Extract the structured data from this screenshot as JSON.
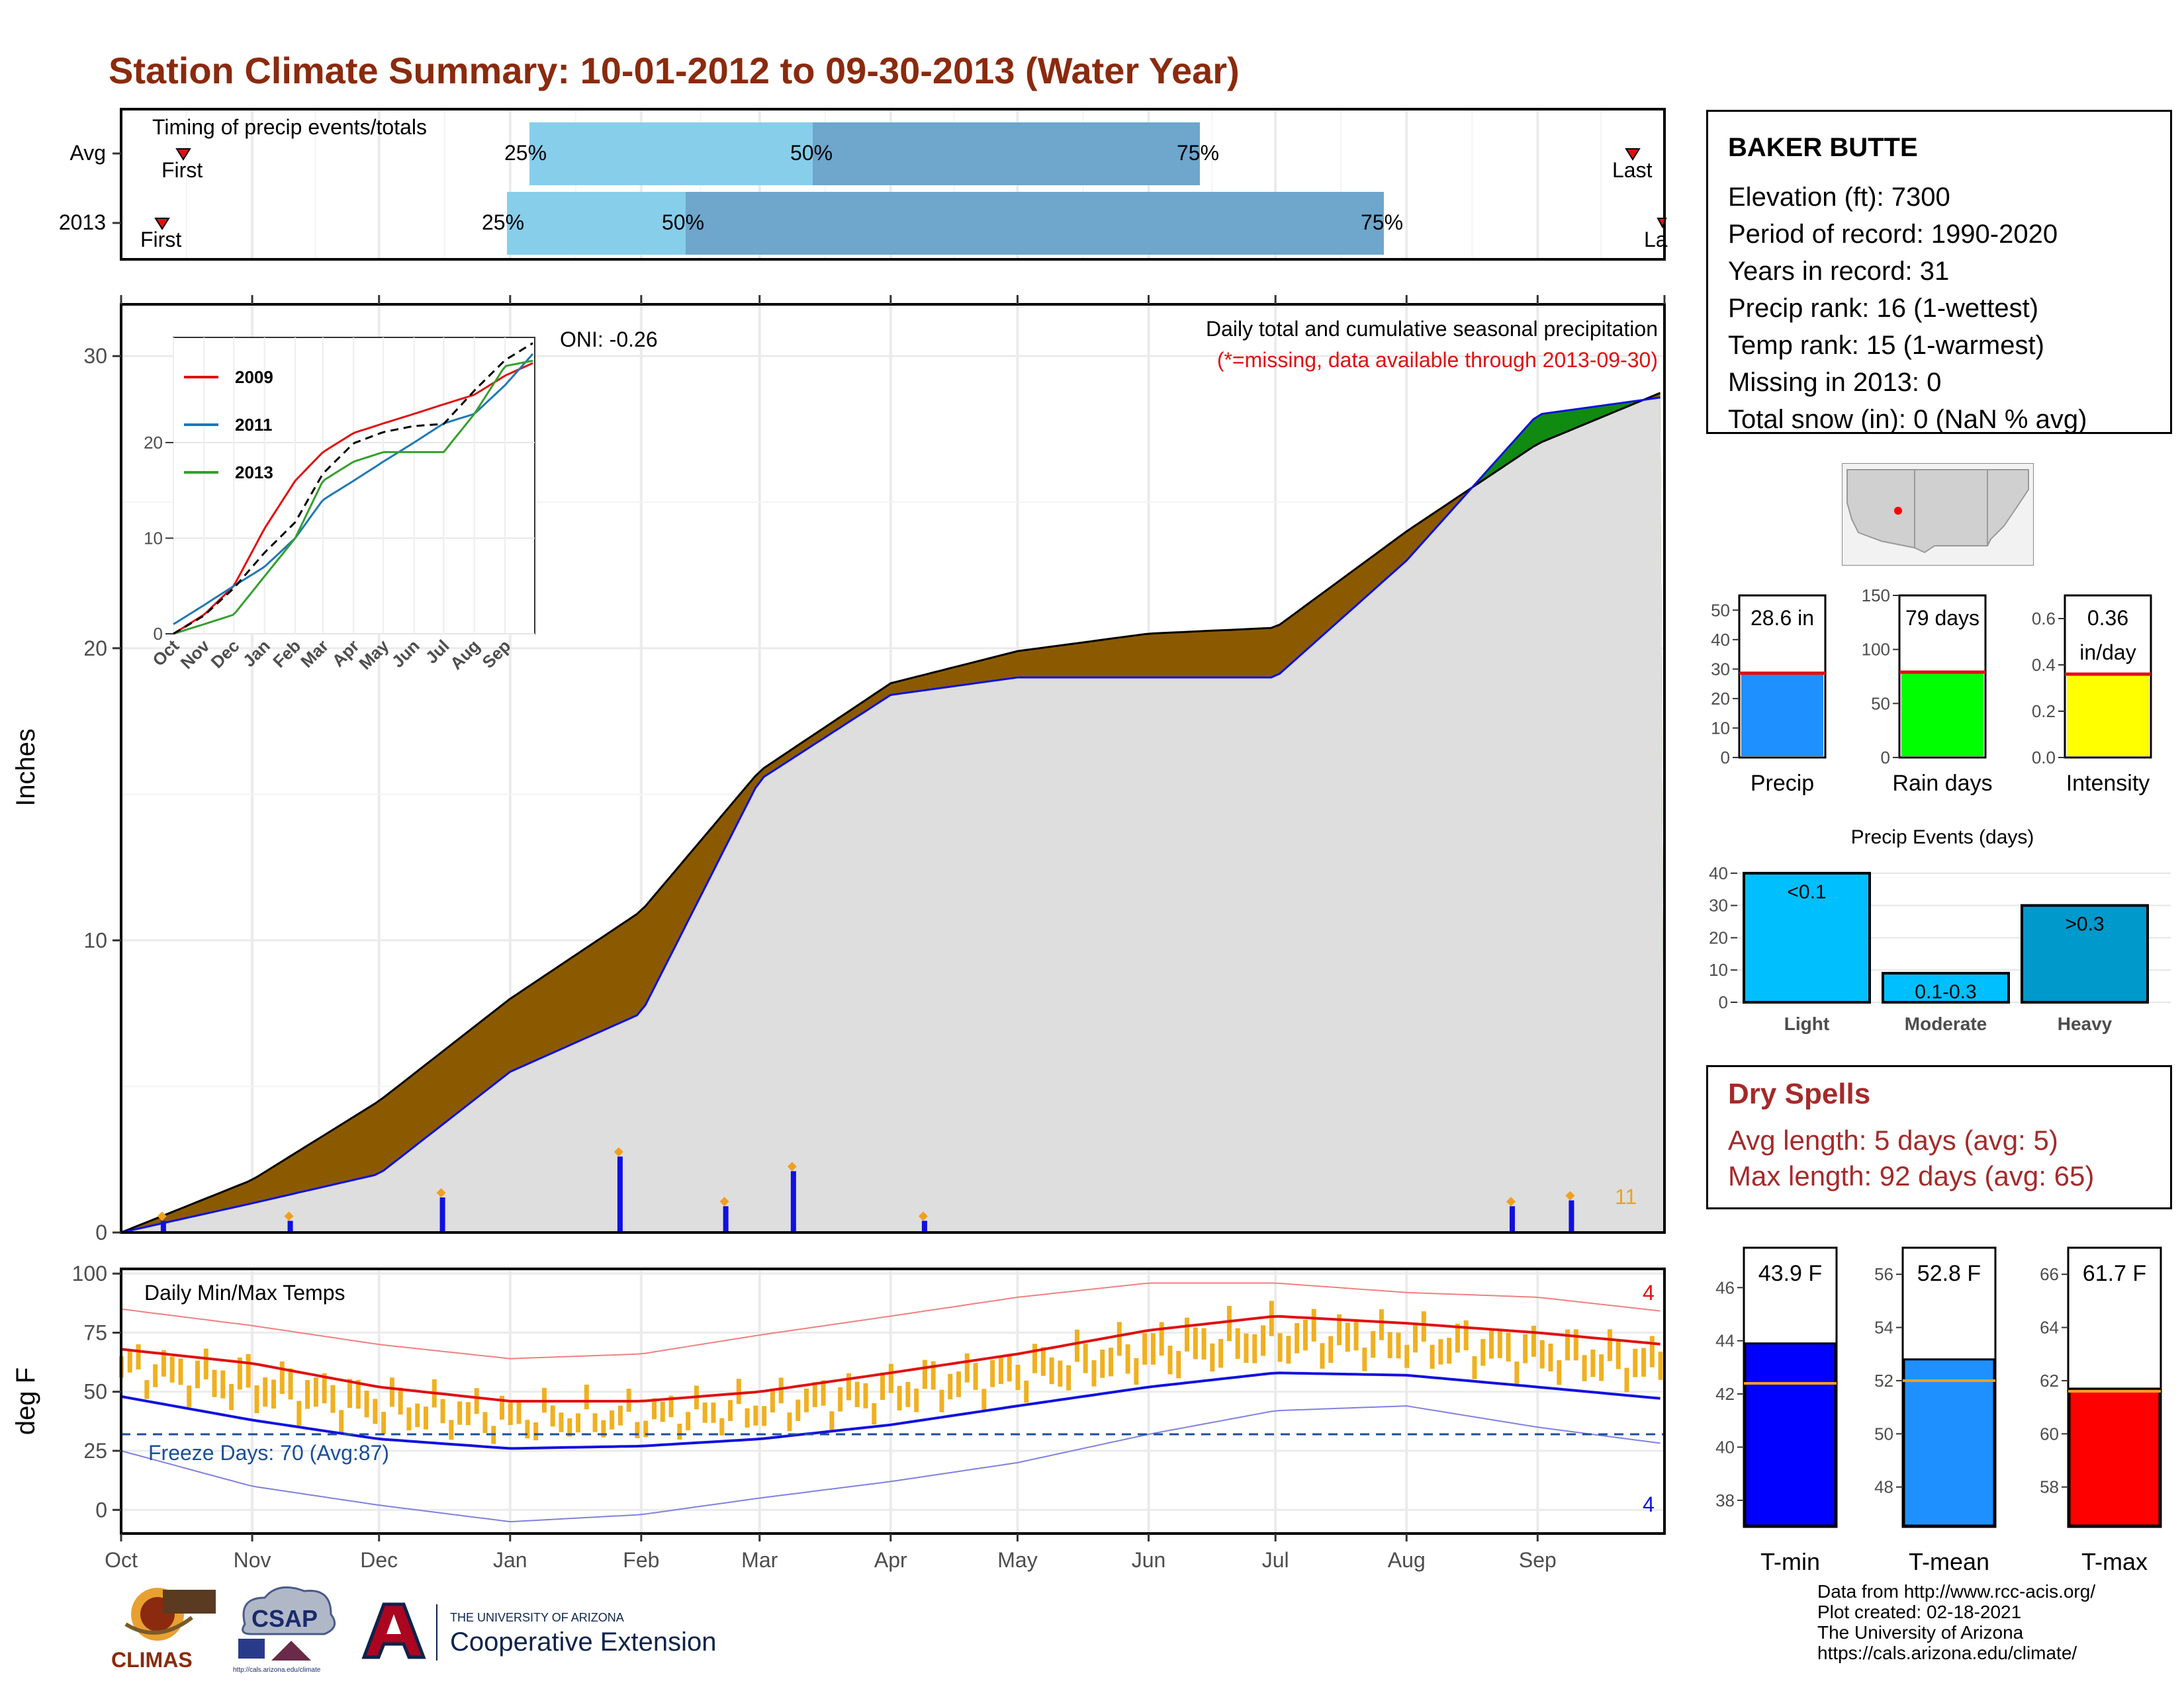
{
  "title": "Station Climate Summary: 10-01-2012 to 09-30-2013 (Water Year)",
  "colors": {
    "title": "#8b2a0e",
    "cum_fill": "#8b5a00",
    "green_fill": "#108a10",
    "blue_line": "#1010e0",
    "grey_fill": "#dedede",
    "orange": "#f0b020",
    "red": "#e02020",
    "blue_light": "#87ceeb",
    "blue_dark": "#6ea6cc"
  },
  "timing": {
    "label": "Timing of precip events/totals",
    "rows": [
      {
        "name": "Avg",
        "first_label": "First",
        "last_label": "Last",
        "q25": "25%",
        "q50": "50%",
        "q75": "75%"
      },
      {
        "name": "2013",
        "first_label": "First",
        "last_label": "La",
        "q25": "25%",
        "q50": "50%",
        "q75": "75%"
      }
    ]
  },
  "precip": {
    "ylabel": "Inches",
    "caption": "Daily total and cumulative seasonal precipitation",
    "caption_missing": "(*=missing, data available through 2013-09-30)",
    "oni": "ONI: -0.26",
    "count_label": "11",
    "yticks": [
      "0",
      "10",
      "20",
      "30"
    ]
  },
  "inset": {
    "legend": [
      "2009",
      "2011",
      "2013"
    ],
    "yticks": [
      "0",
      "10",
      "20"
    ],
    "xticks": [
      "Oct",
      "Nov",
      "Dec",
      "Jan",
      "Feb",
      "Mar",
      "Apr",
      "May",
      "Jun",
      "Jul",
      "Aug",
      "Sep"
    ]
  },
  "temps": {
    "ylabel": "deg F",
    "label": "Daily Min/Max Temps",
    "freeze": "Freeze Days: 70 (Avg:87)",
    "max_count": "4",
    "min_count": "4",
    "yticks": [
      "0",
      "25",
      "50",
      "75",
      "100"
    ]
  },
  "months": [
    "Oct",
    "Nov",
    "Dec",
    "Jan",
    "Feb",
    "Mar",
    "Apr",
    "May",
    "Jun",
    "Jul",
    "Aug",
    "Sep"
  ],
  "station": {
    "name": "BAKER BUTTE",
    "lines": [
      "Elevation (ft): 7300",
      "Period of record: 1990-2020",
      "Years in record: 31",
      "Precip rank: 16 (1-wettest)",
      "Temp rank: 15 (1-warmest)",
      "Missing in 2013: 0",
      "Total snow (in): 0 (NaN % avg)"
    ]
  },
  "mini_bars": [
    {
      "label": "Precip",
      "value_label": "28.6 in",
      "value": 28.6,
      "avg": 28.6,
      "max": 55,
      "ticks": [
        "0",
        "10",
        "20",
        "30",
        "40",
        "50"
      ],
      "color": "#1e90ff"
    },
    {
      "label": "Rain days",
      "value_label": "79 days",
      "value": 79,
      "avg": 79,
      "max": 150,
      "ticks": [
        "0",
        "50",
        "100",
        "150"
      ],
      "color": "#00ff00"
    },
    {
      "label": "Intensity",
      "value_label": "0.36",
      "value_label2": "in/day",
      "value": 0.36,
      "avg": 0.36,
      "max": 0.7,
      "ticks": [
        "0.0",
        "0.2",
        "0.4",
        "0.6"
      ],
      "color": "#ffff00"
    }
  ],
  "events": {
    "title": "Precip Events (days)",
    "yticks": [
      "0",
      "10",
      "20",
      "30",
      "40"
    ],
    "bars": [
      {
        "label": "Light",
        "inner": "<0.1",
        "value": 40,
        "color": "#00bfff"
      },
      {
        "label": "Moderate",
        "inner": "0.1-0.3",
        "value": 9,
        "color": "#00bfff"
      },
      {
        "label": "Heavy",
        "inner": ">0.3",
        "value": 30,
        "color": "#0099cc"
      }
    ]
  },
  "dry": {
    "title": "Dry Spells",
    "avg": "Avg length: 5 days (avg: 5)",
    "max": "Max length: 92 days (avg: 65)"
  },
  "temp_bars": [
    {
      "label": "T-min",
      "value_label": "43.9 F",
      "value": 43.9,
      "avg": 42.4,
      "ymin": 37,
      "ymax": 47.5,
      "ticks": [
        "38",
        "40",
        "42",
        "44",
        "46"
      ],
      "color": "#0000ff"
    },
    {
      "label": "T-mean",
      "value_label": "52.8 F",
      "value": 52.8,
      "avg": 52.0,
      "ymin": 46.5,
      "ymax": 57,
      "ticks": [
        "48",
        "50",
        "52",
        "54",
        "56"
      ],
      "color": "#1e90ff"
    },
    {
      "label": "T-max",
      "value_label": "61.7 F",
      "value": 61.7,
      "avg": 61.6,
      "ymin": 56.5,
      "ymax": 67,
      "ticks": [
        "58",
        "60",
        "62",
        "64",
        "66"
      ],
      "color": "#ff0000"
    }
  ],
  "footer": {
    "lines": [
      "Data from http://www.rcc-acis.org/",
      "Plot created: 02-18-2021",
      "The University of Arizona",
      "https://cals.arizona.edu/climate/"
    ],
    "logo_climas": "CLIMAS",
    "logo_csap": "CSAP",
    "logo_csap_url": "http://cals.arizona.edu/climate",
    "ua_small": "THE UNIVERSITY OF ARIZONA",
    "ua_big": "Cooperative Extension"
  },
  "chart_data": [
    {
      "type": "area",
      "title": "Daily total and cumulative seasonal precipitation",
      "ylabel": "Inches",
      "ylim": [
        0,
        31.5
      ],
      "x": [
        "Oct",
        "Nov",
        "Dec",
        "Jan",
        "Feb",
        "Mar",
        "Apr",
        "May",
        "Jun",
        "Jul",
        "Aug",
        "Sep",
        "Sep 30"
      ],
      "series": [
        {
          "name": "avg",
          "values": [
            0,
            1.8,
            4.5,
            8.0,
            11.0,
            15.8,
            18.8,
            19.9,
            20.5,
            20.7,
            24.0,
            27.0,
            28.8
          ]
        },
        {
          "name": "2013",
          "values": [
            0,
            1.0,
            2.0,
            5.5,
            7.5,
            15.5,
            18.4,
            19.0,
            19.0,
            19.0,
            23.0,
            28.0,
            28.6
          ]
        }
      ],
      "daily_events": [
        {
          "month": "Oct",
          "day": 10,
          "value": 0.4
        },
        {
          "month": "Nov",
          "day": 9,
          "value": 0.4
        },
        {
          "month": "Dec",
          "day": 15,
          "value": 1.2
        },
        {
          "month": "Jan",
          "day": 26,
          "value": 2.6
        },
        {
          "month": "Feb",
          "day": 20,
          "value": 0.9
        },
        {
          "month": "Mar",
          "day": 8,
          "value": 2.1
        },
        {
          "month": "Apr",
          "day": 8,
          "value": 0.4
        },
        {
          "month": "Aug",
          "day": 25,
          "value": 0.9
        },
        {
          "month": "Sep",
          "day": 8,
          "value": 1.1
        }
      ]
    },
    {
      "type": "line",
      "title": "",
      "ylim": [
        0,
        31
      ],
      "x": [
        "Oct",
        "Nov",
        "Dec",
        "Jan",
        "Feb",
        "Mar",
        "Apr",
        "May",
        "Jun",
        "Jul",
        "Aug",
        "Sep",
        "Sep 30"
      ],
      "series": [
        {
          "name": "2009",
          "values": [
            0,
            2,
            5,
            11,
            16,
            19,
            21,
            22,
            23,
            24,
            25,
            27,
            28.4
          ]
        },
        {
          "name": "2011",
          "values": [
            1,
            3,
            5,
            7,
            10,
            14,
            16,
            18,
            20,
            22,
            23,
            26,
            29.5
          ]
        },
        {
          "name": "2013",
          "values": [
            0,
            1,
            2,
            6,
            10,
            16,
            18,
            19,
            19,
            19,
            23,
            28,
            28.6
          ]
        }
      ]
    },
    {
      "type": "line",
      "title": "Daily Min/Max Temps",
      "ylabel": "deg F",
      "ylim": [
        -10,
        102
      ],
      "x": [
        "Oct",
        "Nov",
        "Dec",
        "Jan",
        "Feb",
        "Mar",
        "Apr",
        "May",
        "Jun",
        "Jul",
        "Aug",
        "Sep",
        "Sep 30"
      ],
      "series": [
        {
          "name": "avg max",
          "values": [
            68,
            62,
            52,
            46,
            46,
            50,
            58,
            66,
            76,
            82,
            79,
            75,
            70
          ]
        },
        {
          "name": "avg min",
          "values": [
            48,
            38,
            30,
            26,
            27,
            30,
            36,
            44,
            52,
            58,
            57,
            52,
            47
          ]
        },
        {
          "name": "record max",
          "values": [
            85,
            78,
            70,
            64,
            66,
            74,
            82,
            90,
            96,
            96,
            92,
            90,
            84
          ]
        },
        {
          "name": "record min",
          "values": [
            25,
            10,
            2,
            -5,
            -2,
            5,
            12,
            20,
            32,
            42,
            44,
            35,
            28
          ]
        }
      ],
      "freeze_line": 32
    }
  ]
}
